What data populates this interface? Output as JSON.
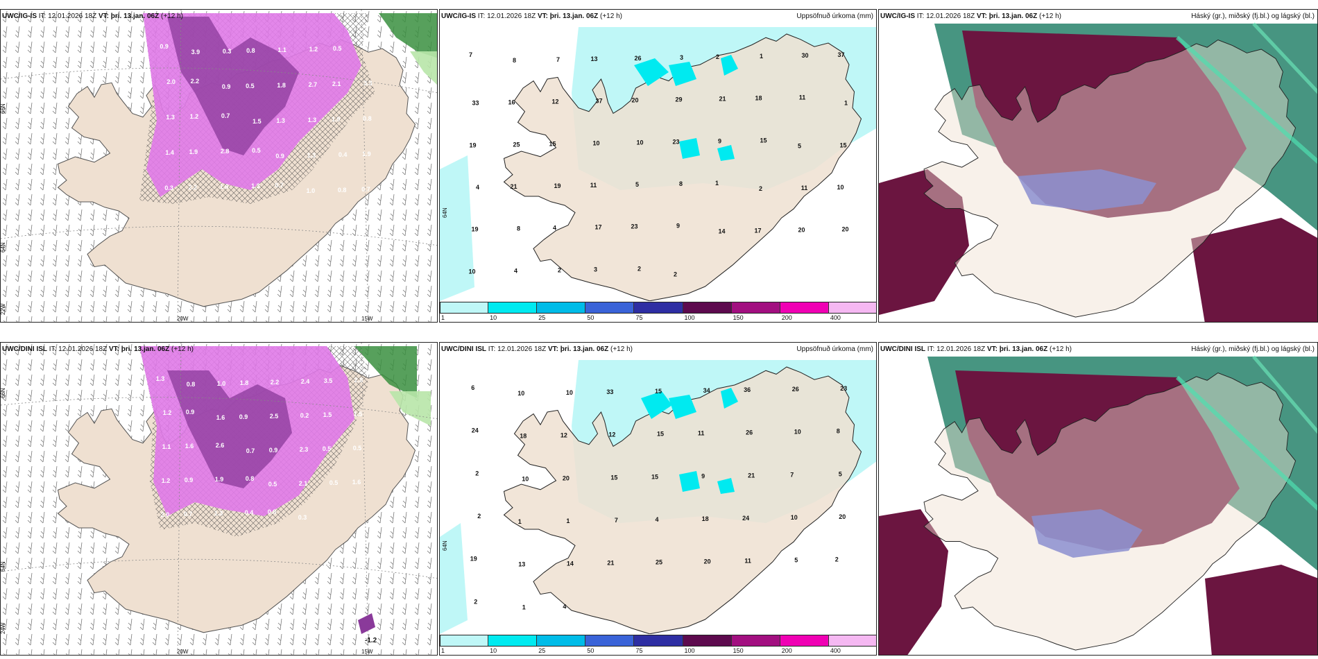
{
  "panels": {
    "p1": {
      "model": "UWC/IG-IS",
      "it": "IT: 12.01.2026 18Z",
      "vt_label": "VT:",
      "vt": "þri. 13.jan. 06Z",
      "lead": "(+12 h)",
      "right_title": "",
      "axis_labels": [
        "66N",
        "64N",
        "20W",
        "15W",
        "22W"
      ],
      "values": [
        "0.9",
        "3.9",
        "0.3",
        "0.8",
        "1.1",
        "1.2",
        "0.5",
        "0.8",
        "2.0",
        "2.2",
        "0.9",
        "0.5",
        "1.8",
        "2.7",
        "2.1",
        "3.3",
        "1.3",
        "1.2",
        "0.7",
        "1.5",
        "1.3",
        "1.3",
        "1.9",
        "0.8",
        "1.4",
        "1.9",
        "2.8",
        "0.5",
        "0.9",
        "1.3",
        "0.4",
        "1.9",
        "0.3",
        "2.2",
        "1.6",
        "1.3",
        "0.7",
        "1.0",
        "0.8",
        "0.7"
      ]
    },
    "p2": {
      "model": "UWC/IG-IS",
      "it": "IT: 12.01.2026 18Z",
      "vt_label": "VT:",
      "vt": "þri. 13.jan. 06Z",
      "lead": "(+12 h)",
      "right_title": "Uppsöfnuð úrkoma (mm)",
      "axis_labels": [
        "64N"
      ],
      "values": [
        "7",
        "8",
        "7",
        "13",
        "26",
        "3",
        "2",
        "1",
        "30",
        "37",
        "33",
        "16",
        "12",
        "37",
        "20",
        "29",
        "21",
        "18",
        "11",
        "1",
        "19",
        "25",
        "15",
        "10",
        "10",
        "23",
        "9",
        "15",
        "5",
        "15",
        "4",
        "21",
        "19",
        "11",
        "5",
        "8",
        "1",
        "2",
        "11",
        "10",
        "19",
        "8",
        "4",
        "17",
        "23",
        "9",
        "14",
        "17",
        "20",
        "20",
        "10",
        "4",
        "2",
        "3",
        "2",
        "2"
      ],
      "colorbar": {
        "labels": [
          "1",
          "10",
          "25",
          "50",
          "75",
          "100",
          "150",
          "200",
          "400"
        ],
        "colors": [
          "#bff7f7",
          "#00eaf0",
          "#00bce8",
          "#3a63d8",
          "#2e2ea3",
          "#5d0a4e",
          "#a20f80",
          "#f000b4",
          "#f5b8f2"
        ]
      }
    },
    "p3": {
      "model": "UWC/IG-IS",
      "it": "IT: 12.01.2026 18Z",
      "vt_label": "VT:",
      "vt": "þri. 13.jan. 06Z",
      "lead": "(+12 h)",
      "right_title": "Háský (gr.), miðský (fj.bl.) og lágský (bl.)"
    },
    "p4": {
      "model": "UWC/DINI ISL",
      "it": "IT: 12.01.2026 18Z",
      "vt_label": "VT:",
      "vt": "þri. 13.jan. 06Z",
      "lead": "(+12 h)",
      "right_title": "",
      "axis_labels": [
        "66N",
        "64N",
        "20W",
        "15W",
        "24W",
        "-1.2"
      ],
      "values": [
        "1.3",
        "0.8",
        "1.0",
        "1.8",
        "2.2",
        "2.4",
        "3.5",
        "2.8",
        "1.2",
        "0.9",
        "1.6",
        "0.9",
        "2.5",
        "0.2",
        "1.5",
        "1.5",
        "1.1",
        "1.6",
        "2.6",
        "0.7",
        "0.9",
        "2.3",
        "0.5",
        "0.5",
        "1.2",
        "0.9",
        "1.9",
        "0.8",
        "0.5",
        "2.1",
        "0.5",
        "1.6",
        "2.0",
        "0.7",
        "1.3",
        "0.4",
        "0.8",
        "0.3"
      ]
    },
    "p5": {
      "model": "UWC/DINI ISL",
      "it": "IT: 12.01.2026 18Z",
      "vt_label": "VT:",
      "vt": "þri. 13.jan. 06Z",
      "lead": "(+12 h)",
      "right_title": "Uppsöfnuð úrkoma (mm)",
      "axis_labels": [
        "64N"
      ],
      "values": [
        "6",
        "10",
        "10",
        "33",
        "15",
        "34",
        "36",
        "26",
        "23",
        "24",
        "18",
        "12",
        "12",
        "15",
        "11",
        "26",
        "10",
        "8",
        "2",
        "10",
        "20",
        "15",
        "15",
        "9",
        "21",
        "7",
        "5",
        "2",
        "1",
        "1",
        "7",
        "4",
        "18",
        "24",
        "10",
        "20",
        "19",
        "13",
        "14",
        "21",
        "25",
        "20",
        "11",
        "5",
        "2",
        "2",
        "1",
        "4"
      ],
      "colorbar": {
        "labels": [
          "1",
          "10",
          "25",
          "50",
          "75",
          "100",
          "150",
          "200",
          "400"
        ],
        "colors": [
          "#bff7f7",
          "#00eaf0",
          "#00bce8",
          "#3a63d8",
          "#2e2ea3",
          "#5d0a4e",
          "#a20f80",
          "#f000b4",
          "#f5b8f2"
        ]
      }
    },
    "p6": {
      "model": "UWC/DINI ISL",
      "it": "IT: 12.01.2026 18Z",
      "vt_label": "VT:",
      "vt": "þri. 13.jan. 06Z",
      "lead": "(+12 h)",
      "right_title": "Háský (gr.), miðský (fj.bl.) og lágský (bl.)"
    }
  },
  "colors": {
    "land": "#efe0d1",
    "precip_light": "#bff7f7",
    "precip_mid": "#00eaf0",
    "high_cloud": "#3d8f7a",
    "mid_cloud": "#6b1540",
    "low_cloud": "#3b4fd0",
    "magenta": "#e07ae8",
    "purple": "#8a3a9a"
  }
}
